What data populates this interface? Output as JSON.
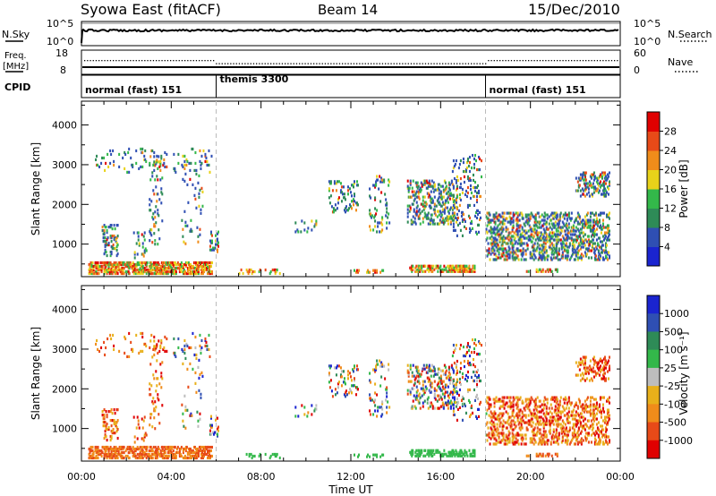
{
  "header": {
    "station": "Syowa East (fitACF)",
    "beam": "Beam 14",
    "date": "15/Dec/2010"
  },
  "top_panel": {
    "left_label": "N.Sky",
    "right_label": "N.Search",
    "left_ticks": [
      "10^5",
      "10^0"
    ],
    "right_ticks": [
      "10^5",
      "10^0"
    ]
  },
  "freq_panel": {
    "left_label_line1": "Freq.",
    "left_label_line2": "[MHz]",
    "right_label": "Nave",
    "left_ticks": [
      "18",
      "8"
    ],
    "right_ticks": [
      "60",
      "0"
    ]
  },
  "cpid": {
    "label": "CPID",
    "segments": [
      {
        "name": "normal (fast) 151",
        "start_hour": 0,
        "end_hour": 6
      },
      {
        "name": "themis 3300",
        "start_hour": 6,
        "end_hour": 18
      },
      {
        "name": "normal (fast) 151",
        "start_hour": 18,
        "end_hour": 24
      }
    ]
  },
  "chart_data": [
    {
      "type": "heatmap",
      "title": "",
      "xlabel": "Time UT",
      "ylabel": "Slant Range [km]",
      "xlim": [
        0,
        24
      ],
      "ylim": [
        180,
        4600
      ],
      "yticks": [
        1000,
        2000,
        3000,
        4000
      ],
      "colorbar": {
        "label": "Power [dB]",
        "ticks": [
          "4",
          "8",
          "12",
          "16",
          "20",
          "24",
          "28"
        ],
        "range": [
          0,
          30
        ],
        "colors": [
          "#1a24d0",
          "#2f4fb3",
          "#2e8b57",
          "#33b84a",
          "#e8d21a",
          "#f08c1a",
          "#e84a18",
          "#e00000"
        ]
      }
    },
    {
      "type": "heatmap",
      "title": "",
      "xlabel": "Time UT",
      "ylabel": "Slant Range [km]",
      "xlim": [
        0,
        24
      ],
      "ylim": [
        180,
        4600
      ],
      "yticks": [
        1000,
        2000,
        3000,
        4000
      ],
      "colorbar": {
        "label": "Velocity [m s⁻¹]",
        "ticks": [
          "1000",
          "500",
          "100",
          "25",
          "-25",
          "-100",
          "-500",
          "-1000"
        ],
        "colors": [
          "#1a24d0",
          "#2f4fb3",
          "#2e8b57",
          "#33b84a",
          "#bdbdbd",
          "#e8b01a",
          "#f08c1a",
          "#e84a18",
          "#e00000"
        ]
      }
    }
  ],
  "x_axis": {
    "tick_labels": [
      "00:00",
      "04:00",
      "08:00",
      "12:00",
      "16:00",
      "20:00",
      "00:00"
    ],
    "tick_hours": [
      0,
      4,
      8,
      12,
      16,
      20,
      24
    ],
    "label": "Time UT"
  }
}
